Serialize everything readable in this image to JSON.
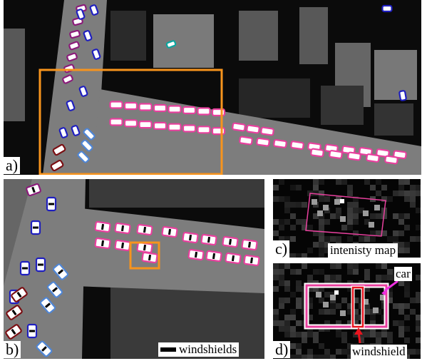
{
  "figure": {
    "panel_a": {
      "label": "a)"
    },
    "panel_b": {
      "label": "b)",
      "legend_text": "windshields"
    },
    "panel_c": {
      "label": "c)",
      "caption": "intenisty map"
    },
    "panel_d": {
      "label": "d)",
      "car_label": "car",
      "windshield_label": "windshield"
    }
  },
  "colors": {
    "background_dark": "#0b0b0b",
    "road": "#7d7d7d",
    "building_mid": "#585858",
    "building_dark": "#333333",
    "highlight_box": "#f7941d",
    "car_pink": "#e8409e",
    "car_purple": "#8b1a7a",
    "car_blue": "#1f1fbf",
    "car_light_blue": "#4f86d6",
    "car_dark_red": "#7a0e12",
    "car_teal": "#0aa6a0",
    "windshield_box": "#e8141e",
    "arrow_magenta": "#ee30e0"
  }
}
